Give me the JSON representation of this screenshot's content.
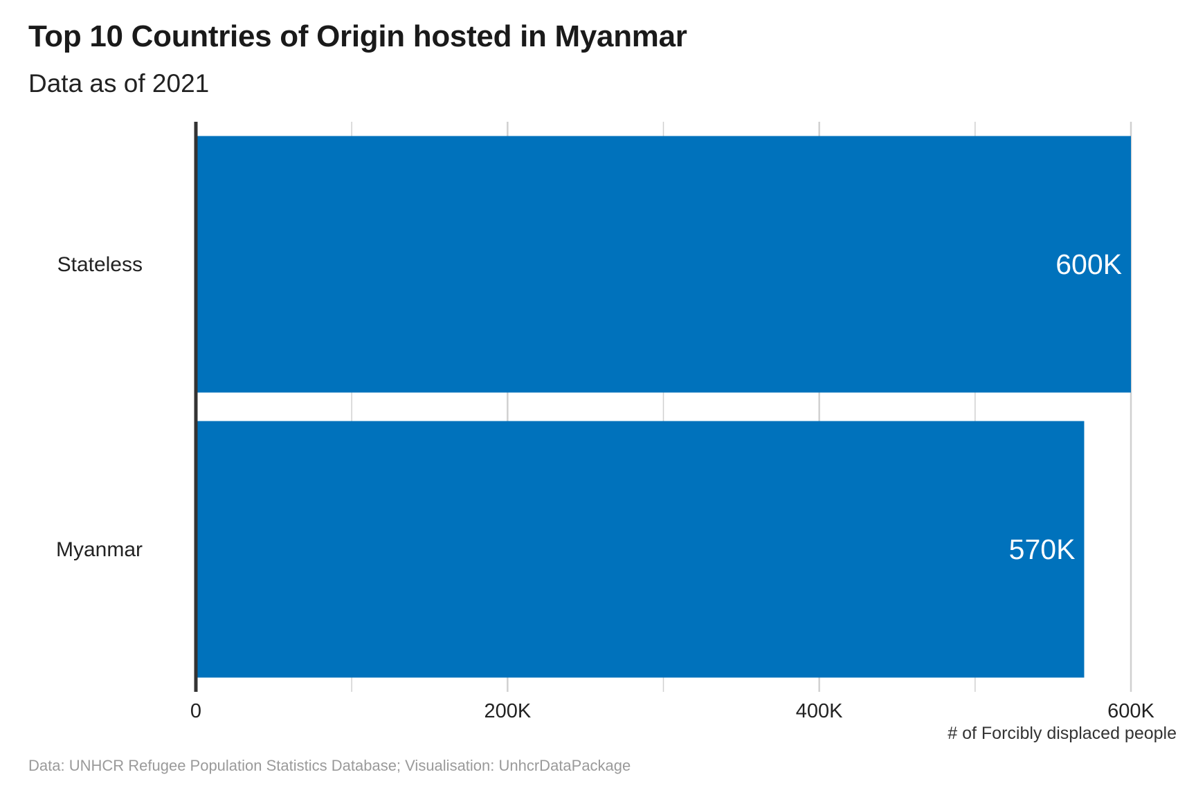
{
  "title": "Top 10 Countries of Origin hosted in Myanmar",
  "subtitle": "Data as of 2021",
  "caption": "Data: UNHCR Refugee Population Statistics Database; Visualisation: UnhcrDataPackage",
  "chart_data": {
    "type": "bar",
    "orientation": "horizontal",
    "categories": [
      "Stateless",
      "Myanmar"
    ],
    "values": [
      600000,
      570000
    ],
    "value_labels": [
      "600K",
      "570K"
    ],
    "xlabel": "# of Forcibly displaced people",
    "ylabel": "",
    "xlim": [
      0,
      600000
    ],
    "x_ticks": [
      0,
      200000,
      400000,
      600000
    ],
    "x_tick_labels": [
      "0",
      "200K",
      "400K",
      "600K"
    ],
    "minor_gridlines": [
      100000,
      300000,
      500000
    ],
    "grid": "vertical",
    "bar_color": "#0072BC",
    "gridline_color": "#d0d0d0",
    "axis_line_color": "#333333"
  }
}
